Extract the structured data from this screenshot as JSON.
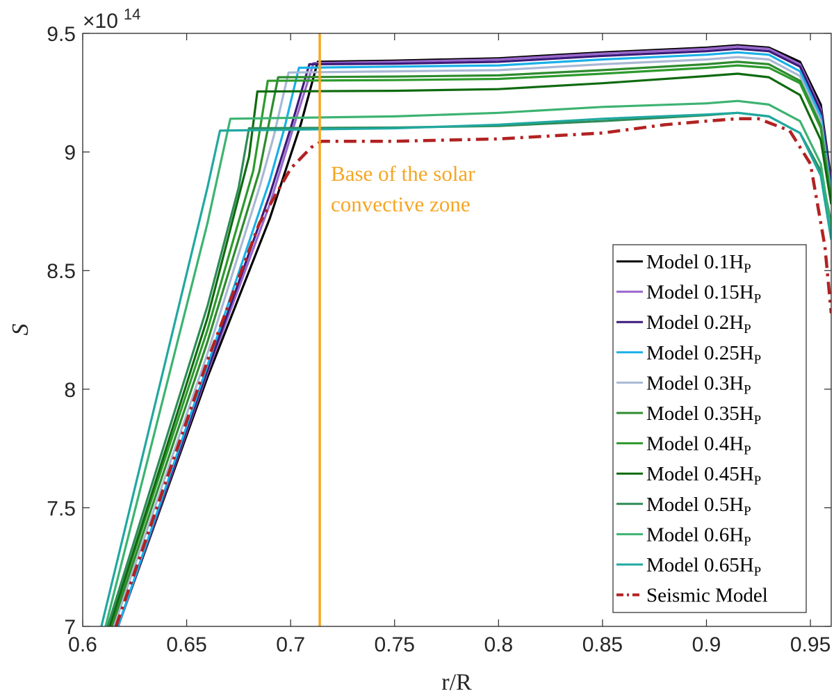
{
  "chart_data": {
    "type": "line",
    "title": "",
    "xlabel": "r/R",
    "ylabel": "S",
    "xlim": [
      0.6,
      0.96
    ],
    "ylim": [
      7,
      9.5
    ],
    "y_multiplier": {
      "base": "×10",
      "exponent": "14"
    },
    "xticks": [
      0.6,
      0.65,
      0.7,
      0.75,
      0.8,
      0.85,
      0.9,
      0.95
    ],
    "xtick_labels": [
      "0.6",
      "0.65",
      "0.7",
      "0.75",
      "0.8",
      "0.85",
      "0.9",
      "0.95"
    ],
    "yticks": [
      7,
      7.5,
      8,
      8.5,
      9,
      9.5
    ],
    "ytick_labels": [
      "7",
      "7.5",
      "8",
      "8.5",
      "9",
      "9.5"
    ],
    "grid": false,
    "legend_position": "bottom-right",
    "annotation": {
      "x": 0.714,
      "lines": [
        "Base of the solar",
        "convective zone"
      ],
      "color": "#f5a623"
    },
    "series": [
      {
        "name": "Model 0.1",
        "subscript": "P",
        "param": "H",
        "color": "#000000",
        "dash": "solid",
        "x": [
          0.617,
          0.66,
          0.69,
          0.705,
          0.713,
          0.75,
          0.8,
          0.85,
          0.9,
          0.915,
          0.93,
          0.945,
          0.955,
          0.96
        ],
        "y": [
          7.0,
          8.05,
          8.72,
          9.12,
          9.38,
          9.385,
          9.395,
          9.42,
          9.44,
          9.45,
          9.44,
          9.38,
          9.2,
          8.88
        ]
      },
      {
        "name": "Model 0.15",
        "subscript": "P",
        "param": "H",
        "color": "#9966cc",
        "dash": "solid",
        "x": [
          0.617,
          0.66,
          0.69,
          0.703,
          0.711,
          0.75,
          0.8,
          0.85,
          0.9,
          0.915,
          0.93,
          0.945,
          0.955,
          0.96
        ],
        "y": [
          7.0,
          8.07,
          8.78,
          9.15,
          9.375,
          9.38,
          9.39,
          9.415,
          9.435,
          9.445,
          9.435,
          9.37,
          9.18,
          8.86
        ]
      },
      {
        "name": "Model 0.2",
        "subscript": "P",
        "param": "H",
        "color": "#3b1a78",
        "dash": "solid",
        "x": [
          0.617,
          0.66,
          0.69,
          0.7,
          0.709,
          0.75,
          0.8,
          0.85,
          0.9,
          0.915,
          0.93,
          0.945,
          0.955,
          0.96
        ],
        "y": [
          7.0,
          8.08,
          8.82,
          9.1,
          9.37,
          9.372,
          9.38,
          9.405,
          9.425,
          9.435,
          9.425,
          9.36,
          9.17,
          8.85
        ]
      },
      {
        "name": "Model 0.25",
        "subscript": "P",
        "param": "H",
        "color": "#1ab0e8",
        "dash": "solid",
        "x": [
          0.617,
          0.66,
          0.69,
          0.697,
          0.704,
          0.75,
          0.8,
          0.85,
          0.9,
          0.915,
          0.93,
          0.945,
          0.955,
          0.96
        ],
        "y": [
          7.0,
          8.1,
          8.88,
          9.1,
          9.355,
          9.36,
          9.365,
          9.39,
          9.41,
          9.42,
          9.41,
          9.34,
          9.15,
          8.83
        ]
      },
      {
        "name": "Model 0.3",
        "subscript": "P",
        "param": "H",
        "color": "#a9b8d4",
        "dash": "solid",
        "x": [
          0.615,
          0.66,
          0.685,
          0.692,
          0.699,
          0.75,
          0.8,
          0.85,
          0.9,
          0.915,
          0.93,
          0.945,
          0.955,
          0.96
        ],
        "y": [
          7.0,
          8.15,
          8.85,
          9.07,
          9.335,
          9.34,
          9.345,
          9.37,
          9.39,
          9.4,
          9.39,
          9.32,
          9.13,
          8.81
        ]
      },
      {
        "name": "Model 0.35",
        "subscript": "P",
        "param": "H",
        "color": "#2e8b2e",
        "dash": "solid",
        "x": [
          0.614,
          0.66,
          0.685,
          0.694,
          0.75,
          0.8,
          0.85,
          0.9,
          0.915,
          0.93,
          0.945,
          0.955,
          0.96
        ],
        "y": [
          7.0,
          8.2,
          8.92,
          9.315,
          9.318,
          9.323,
          9.345,
          9.37,
          9.38,
          9.37,
          9.3,
          9.11,
          8.8
        ]
      },
      {
        "name": "Model 0.4",
        "subscript": "P",
        "param": "H",
        "color": "#2c9a2c",
        "dash": "solid",
        "x": [
          0.613,
          0.66,
          0.682,
          0.689,
          0.75,
          0.8,
          0.85,
          0.9,
          0.915,
          0.93,
          0.945,
          0.955,
          0.96
        ],
        "y": [
          7.0,
          8.25,
          8.92,
          9.3,
          9.303,
          9.308,
          9.33,
          9.355,
          9.365,
          9.355,
          9.29,
          9.1,
          8.79
        ]
      },
      {
        "name": "Model 0.45",
        "subscript": "P",
        "param": "H",
        "color": "#0f6a0f",
        "dash": "solid",
        "x": [
          0.613,
          0.66,
          0.68,
          0.684,
          0.75,
          0.8,
          0.85,
          0.9,
          0.915,
          0.93,
          0.945,
          0.955,
          0.96
        ],
        "y": [
          7.0,
          8.3,
          8.98,
          9.255,
          9.258,
          9.265,
          9.29,
          9.32,
          9.33,
          9.315,
          9.24,
          9.05,
          8.78
        ]
      },
      {
        "name": "Model 0.5",
        "subscript": "P",
        "param": "H",
        "color": "#2e8b57",
        "dash": "solid",
        "x": [
          0.612,
          0.66,
          0.675,
          0.68,
          0.75,
          0.8,
          0.85,
          0.9,
          0.915,
          0.93,
          0.945,
          0.955,
          0.96
        ],
        "y": [
          7.0,
          8.35,
          8.85,
          9.1,
          9.103,
          9.11,
          9.13,
          9.155,
          9.165,
          9.15,
          9.08,
          8.92,
          8.7
        ]
      },
      {
        "name": "Model 0.6",
        "subscript": "P",
        "param": "H",
        "color": "#3cb371",
        "dash": "solid",
        "x": [
          0.611,
          0.66,
          0.671,
          0.75,
          0.8,
          0.85,
          0.9,
          0.915,
          0.93,
          0.945,
          0.955,
          0.96
        ],
        "y": [
          7.0,
          8.7,
          9.14,
          9.15,
          9.165,
          9.19,
          9.205,
          9.215,
          9.2,
          9.13,
          8.95,
          8.67
        ]
      },
      {
        "name": "Model 0.65",
        "subscript": "P",
        "param": "H",
        "color": "#20a8a0",
        "dash": "solid",
        "x": [
          0.609,
          0.66,
          0.666,
          0.75,
          0.8,
          0.85,
          0.9,
          0.915,
          0.93,
          0.945,
          0.955,
          0.96
        ],
        "y": [
          7.0,
          8.85,
          9.09,
          9.1,
          9.115,
          9.14,
          9.158,
          9.165,
          9.15,
          9.08,
          8.9,
          8.63
        ]
      },
      {
        "name": "Seismic Model",
        "subscript": "",
        "param": "",
        "color": "#b22222",
        "dash": "dashdot",
        "x": [
          0.616,
          0.66,
          0.685,
          0.7,
          0.71,
          0.715,
          0.75,
          0.8,
          0.85,
          0.88,
          0.9,
          0.915,
          0.925,
          0.94,
          0.95,
          0.957,
          0.96
        ],
        "y": [
          7.0,
          8.12,
          8.7,
          8.93,
          9.02,
          9.045,
          9.045,
          9.055,
          9.08,
          9.115,
          9.13,
          9.14,
          9.14,
          9.09,
          8.95,
          8.6,
          8.32
        ]
      }
    ]
  }
}
